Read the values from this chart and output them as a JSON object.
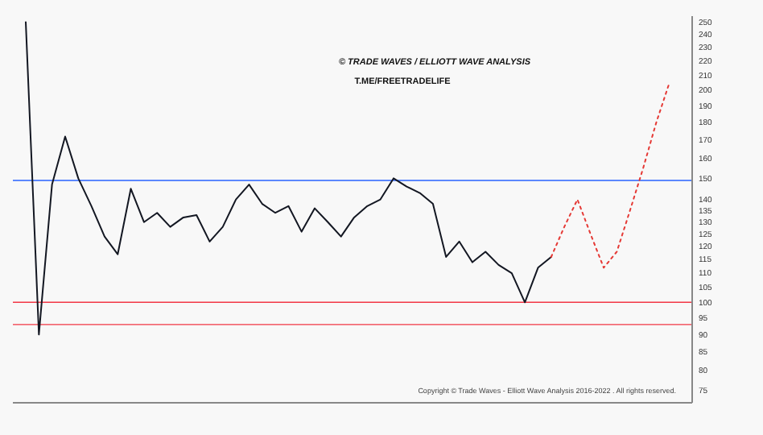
{
  "chart_data": {
    "type": "line",
    "title": "© TRADE WAVES / ELLIOTT WAVE ANALYSIS",
    "subtitle": "T.ME/FREETRADELIFE",
    "annotations": [
      "Copyright © Trade Waves - Elliott Wave Analysis 2016-2022 . All rights reserved."
    ],
    "categories": [
      null,
      null,
      null,
      null,
      null,
      null,
      null,
      null,
      null,
      null,
      null,
      null,
      null,
      null,
      null,
      null,
      null,
      null,
      null,
      null,
      null,
      null,
      null,
      null,
      null,
      null,
      null,
      null,
      null,
      null,
      null,
      null,
      null,
      null,
      null,
      null,
      null,
      null,
      null,
      null,
      null,
      null,
      null,
      null,
      null,
      null,
      null,
      null,
      null,
      null,
      null
    ],
    "series": [
      {
        "color": "#131722",
        "line_style": "solid",
        "values": [
          250,
          90,
          147,
          172,
          150,
          137,
          124,
          117,
          145,
          130,
          134,
          128,
          132,
          133,
          122,
          128,
          140,
          147,
          138,
          134,
          137,
          126,
          136,
          130,
          124,
          132,
          137,
          140,
          150,
          146,
          143,
          138,
          116,
          122,
          114,
          118,
          113,
          110,
          100,
          112,
          116,
          null,
          null,
          null,
          null,
          null,
          null,
          null,
          null,
          null,
          null
        ]
      },
      {
        "color": "#e53935",
        "line_style": "dotted",
        "values": [
          null,
          null,
          null,
          null,
          null,
          null,
          null,
          null,
          null,
          null,
          null,
          null,
          null,
          null,
          null,
          null,
          null,
          null,
          null,
          null,
          null,
          null,
          null,
          null,
          null,
          null,
          null,
          null,
          null,
          null,
          null,
          null,
          null,
          null,
          null,
          null,
          null,
          null,
          null,
          null,
          116,
          128,
          140,
          125,
          112,
          118,
          135,
          155,
          180,
          205,
          null
        ]
      }
    ],
    "log": "y",
    "ylim": [
      72,
      255
    ],
    "yticks": [
      250,
      240,
      230,
      220,
      210,
      200,
      190,
      180,
      170,
      160,
      150,
      140,
      135,
      130,
      125,
      120,
      115,
      110,
      105,
      100,
      95,
      90,
      85,
      80,
      75
    ],
    "ref_lines": [
      {
        "axis": "y",
        "value": 149,
        "color": "#2962ff"
      },
      {
        "axis": "y",
        "value": 100,
        "color": "#f23645"
      },
      {
        "axis": "y",
        "value": 93,
        "color": "#f23645"
      }
    ],
    "tick_labels": "y",
    "grid": false
  }
}
